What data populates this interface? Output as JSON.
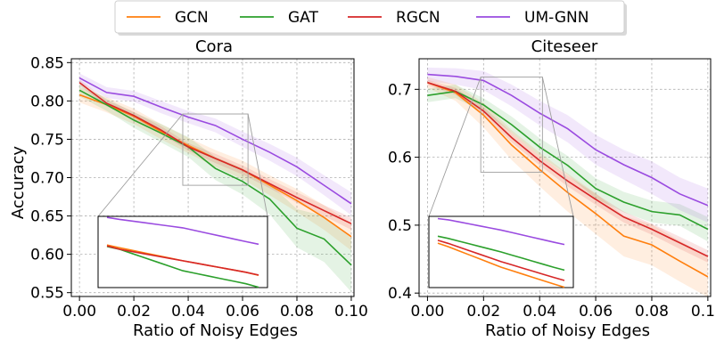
{
  "chart_data": [
    {
      "type": "line",
      "title": "Cora",
      "xlabel": "Ratio of Noisy Edges",
      "ylabel": "Accuracy",
      "x": [
        0.0,
        0.01,
        0.02,
        0.03,
        0.04,
        0.05,
        0.06,
        0.07,
        0.08,
        0.09,
        0.1
      ],
      "xticks": [
        "0.00",
        "0.02",
        "0.04",
        "0.06",
        "0.08",
        "0.10"
      ],
      "yticks": [
        "0.55",
        "0.60",
        "0.65",
        "0.70",
        "0.75",
        "0.80",
        "0.85"
      ],
      "xlim": [
        -0.003,
        0.101
      ],
      "ylim": [
        0.545,
        0.855
      ],
      "grid": true,
      "shaded_band": true,
      "series": [
        {
          "name": "GCN",
          "color": "#ff7f0e",
          "values": [
            0.808,
            0.795,
            0.78,
            0.76,
            0.742,
            0.725,
            0.71,
            0.69,
            0.67,
            0.648,
            0.623
          ],
          "band": [
            0.01,
            0.01,
            0.01,
            0.01,
            0.01,
            0.011,
            0.012,
            0.013,
            0.015,
            0.016,
            0.018
          ]
        },
        {
          "name": "GAT",
          "color": "#2ca02c",
          "values": [
            0.814,
            0.795,
            0.775,
            0.758,
            0.74,
            0.712,
            0.695,
            0.672,
            0.634,
            0.62,
            0.586
          ],
          "band": [
            0.008,
            0.008,
            0.01,
            0.012,
            0.013,
            0.015,
            0.017,
            0.02,
            0.025,
            0.03,
            0.035
          ]
        },
        {
          "name": "RGCN",
          "color": "#d62728",
          "values": [
            0.824,
            0.797,
            0.781,
            0.762,
            0.74,
            0.725,
            0.71,
            0.692,
            0.674,
            0.657,
            0.64
          ],
          "band": [
            0.004,
            0.004,
            0.005,
            0.005,
            0.005,
            0.006,
            0.006,
            0.006,
            0.007,
            0.007,
            0.008
          ]
        },
        {
          "name": "UM-GNN",
          "color": "#9a4be0",
          "values": [
            0.83,
            0.811,
            0.806,
            0.792,
            0.779,
            0.768,
            0.75,
            0.733,
            0.714,
            0.69,
            0.666
          ],
          "band": [
            0.006,
            0.007,
            0.007,
            0.008,
            0.008,
            0.009,
            0.01,
            0.011,
            0.012,
            0.013,
            0.015
          ]
        }
      ],
      "zoom_region": {
        "x": [
          0.038,
          0.062
        ],
        "y": [
          0.69,
          0.783
        ]
      }
    },
    {
      "type": "line",
      "title": "Citeseer",
      "xlabel": "Ratio of Noisy Edges",
      "ylabel": "",
      "x": [
        0.0,
        0.01,
        0.02,
        0.03,
        0.04,
        0.05,
        0.06,
        0.07,
        0.08,
        0.09,
        0.1
      ],
      "xticks": [
        "0.00",
        "0.02",
        "0.04",
        "0.06",
        "0.08",
        "0.10"
      ],
      "yticks": [
        "0.4",
        "0.5",
        "0.6",
        "0.7"
      ],
      "xlim": [
        -0.003,
        0.101
      ],
      "ylim": [
        0.395,
        0.745
      ],
      "grid": true,
      "shaded_band": true,
      "series": [
        {
          "name": "GCN",
          "color": "#ff7f0e",
          "values": [
            0.71,
            0.695,
            0.662,
            0.618,
            0.582,
            0.548,
            0.517,
            0.484,
            0.471,
            0.447,
            0.424
          ],
          "band": [
            0.008,
            0.012,
            0.018,
            0.022,
            0.025,
            0.028,
            0.03,
            0.03,
            0.03,
            0.03,
            0.03
          ]
        },
        {
          "name": "GAT",
          "color": "#2ca02c",
          "values": [
            0.691,
            0.697,
            0.677,
            0.648,
            0.615,
            0.588,
            0.554,
            0.534,
            0.52,
            0.515,
            0.494
          ],
          "band": [
            0.01,
            0.01,
            0.01,
            0.012,
            0.013,
            0.014,
            0.015,
            0.015,
            0.016,
            0.016,
            0.018
          ]
        },
        {
          "name": "RGCN",
          "color": "#d62728",
          "values": [
            0.71,
            0.697,
            0.668,
            0.629,
            0.595,
            0.565,
            0.538,
            0.512,
            0.494,
            0.474,
            0.454
          ],
          "band": [
            0.004,
            0.005,
            0.006,
            0.007,
            0.007,
            0.008,
            0.008,
            0.008,
            0.008,
            0.009,
            0.009
          ]
        },
        {
          "name": "UM-GNN",
          "color": "#9a4be0",
          "values": [
            0.722,
            0.719,
            0.713,
            0.691,
            0.665,
            0.642,
            0.611,
            0.589,
            0.57,
            0.546,
            0.529
          ],
          "band": [
            0.01,
            0.012,
            0.014,
            0.016,
            0.018,
            0.02,
            0.022,
            0.022,
            0.024,
            0.024,
            0.025
          ]
        }
      ],
      "zoom_region": {
        "x": [
          0.019,
          0.041
        ],
        "y": [
          0.578,
          0.718
        ]
      }
    }
  ]
}
